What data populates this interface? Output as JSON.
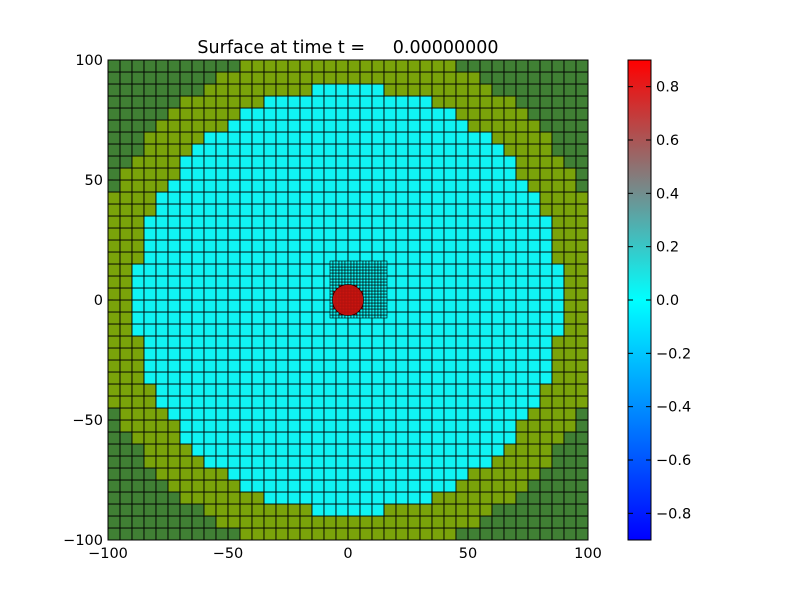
{
  "chart_data": {
    "type": "heatmap",
    "title": "Surface at time t =     0.00000000",
    "xlabel": "",
    "ylabel": "",
    "xlim": [
      -100,
      100
    ],
    "ylim": [
      -100,
      100
    ],
    "x_ticks": [
      -100,
      -50,
      0,
      50,
      100
    ],
    "y_ticks": [
      -100,
      -50,
      0,
      50,
      100
    ],
    "x_tick_labels": [
      "−100",
      "−50",
      "0",
      "50",
      "100"
    ],
    "y_tick_labels": [
      "−100",
      "−50",
      "0",
      "50",
      "100"
    ],
    "grid": {
      "coarse": {
        "n": 40,
        "cell_size": 5,
        "extent": [
          -100,
          100
        ]
      },
      "fine": {
        "x_range": [
          -7.5,
          16.25
        ],
        "y_range": [
          -7.5,
          16.25
        ],
        "cell_size": 1.25
      }
    },
    "regions": [
      {
        "name": "land_outer",
        "type": "outside_radius",
        "radius": 107,
        "color": "#408034"
      },
      {
        "name": "land_inner",
        "type": "annulus",
        "r_inner": 89,
        "r_outer": 107,
        "color": "#7aa30a"
      },
      {
        "name": "water_surface",
        "type": "disk",
        "radius": 89,
        "center": [
          0,
          0
        ],
        "value": 0.0,
        "color": "#10f4f4"
      },
      {
        "name": "hump",
        "type": "disk",
        "radius": 6.5,
        "center": [
          0,
          0
        ],
        "value": 0.8,
        "color": "#c8140f"
      }
    ],
    "colorbar": {
      "vmin": -0.9,
      "vmax": 0.9,
      "ticks": [
        -0.8,
        -0.6,
        -0.4,
        -0.2,
        0.0,
        0.2,
        0.4,
        0.6,
        0.8
      ],
      "tick_labels": [
        "−0.8",
        "−0.6",
        "−0.4",
        "−0.2",
        "0.0",
        "0.2",
        "0.4",
        "0.6",
        "0.8"
      ],
      "colors": [
        {
          "pos": 0.0,
          "color": "#0000ff"
        },
        {
          "pos": 0.5,
          "color": "#00ffff"
        },
        {
          "pos": 0.75,
          "color": "#808080"
        },
        {
          "pos": 1.0,
          "color": "#ff0000"
        }
      ]
    }
  }
}
